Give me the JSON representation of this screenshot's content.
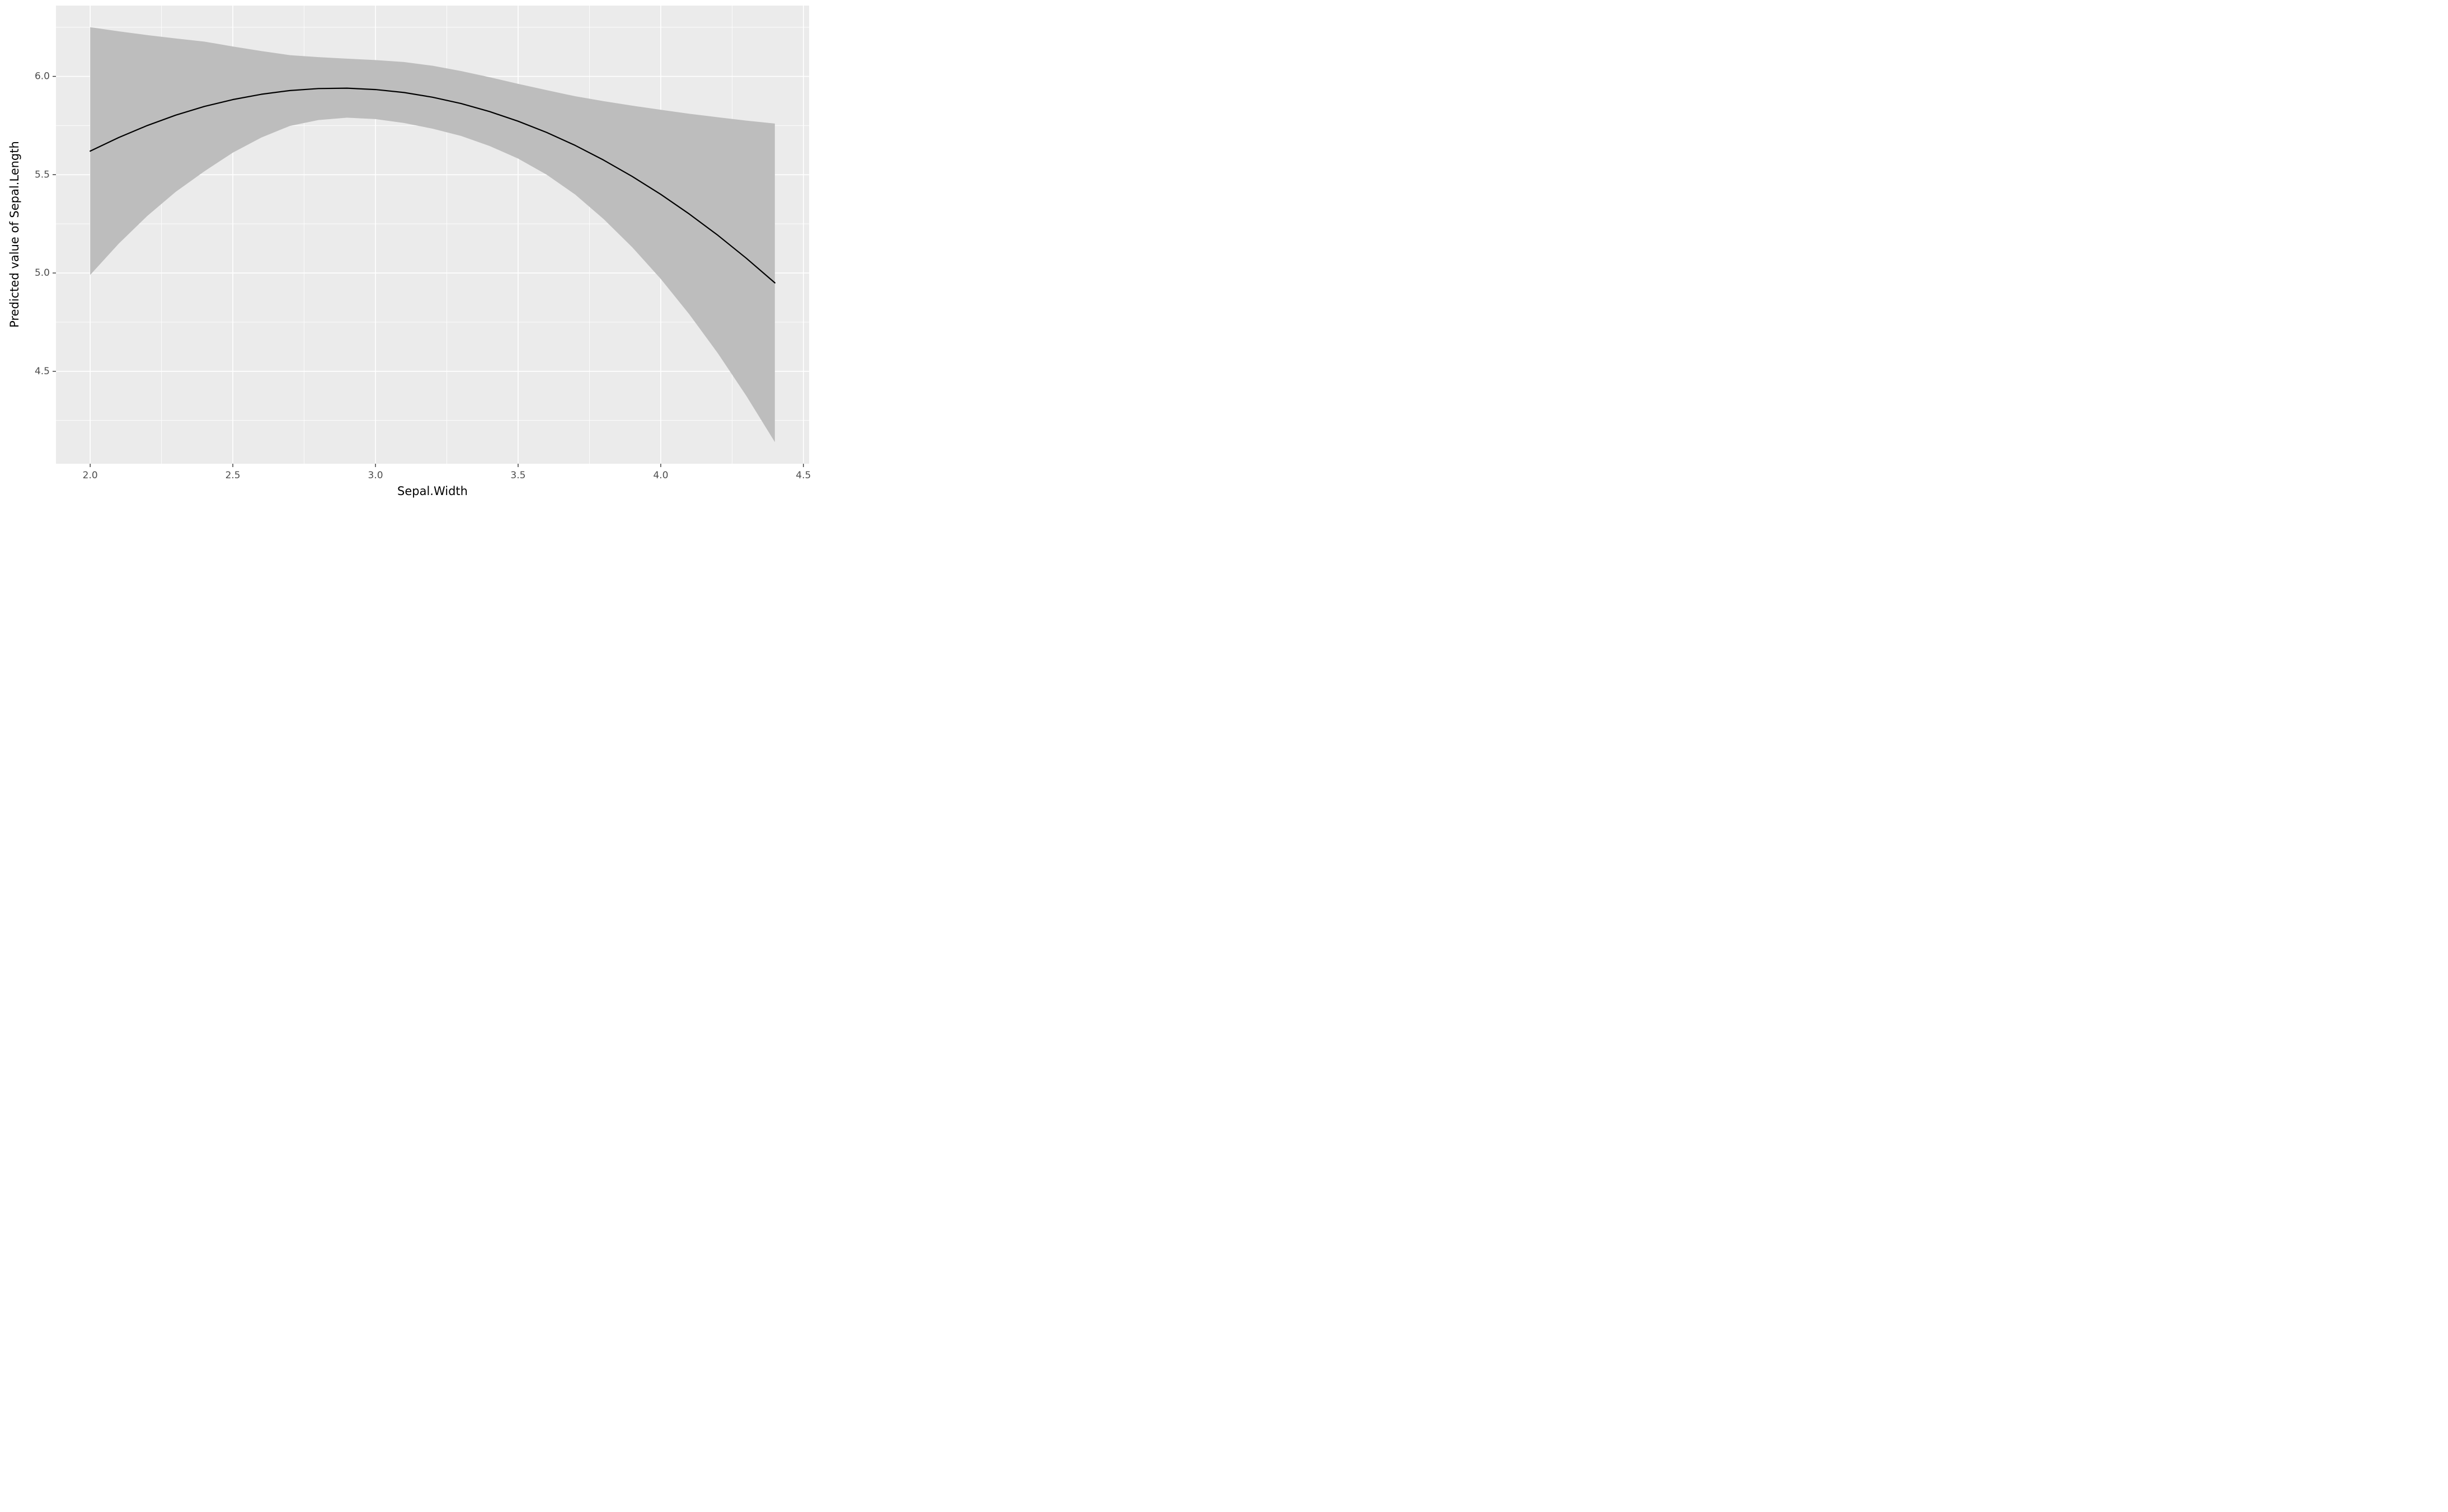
{
  "chart_data": {
    "type": "line",
    "title": "",
    "xlabel": "Sepal.Width",
    "ylabel": "Predicted value of Sepal.Length",
    "xlim": [
      1.88,
      4.52
    ],
    "ylim": [
      4.03,
      6.36
    ],
    "grid": true,
    "legend": "none",
    "x_ticks": {
      "values": [
        2.0,
        2.5,
        3.0,
        3.5,
        4.0,
        4.5
      ],
      "labels": [
        "2.0",
        "2.5",
        "3.0",
        "3.5",
        "4.0",
        "4.5"
      ]
    },
    "y_ticks": {
      "values": [
        4.5,
        5.0,
        5.5,
        6.0
      ],
      "labels": [
        "4.5",
        "5.0",
        "5.5",
        "6.0"
      ]
    },
    "x_minor": [
      2.25,
      2.75,
      3.25,
      3.75,
      4.25
    ],
    "y_minor": [
      4.25,
      4.75,
      5.25,
      5.75,
      6.25
    ],
    "x": [
      2.0,
      2.1,
      2.2,
      2.3,
      2.4,
      2.5,
      2.6,
      2.7,
      2.8,
      2.9,
      3.0,
      3.1,
      3.2,
      3.3,
      3.4,
      3.5,
      3.6,
      3.7,
      3.8,
      3.9,
      4.0,
      4.1,
      4.2,
      4.3,
      4.4
    ],
    "series": [
      {
        "name": "predicted",
        "values": [
          5.62,
          5.689,
          5.75,
          5.803,
          5.847,
          5.882,
          5.909,
          5.928,
          5.938,
          5.94,
          5.933,
          5.918,
          5.894,
          5.862,
          5.821,
          5.772,
          5.715,
          5.649,
          5.574,
          5.491,
          5.4,
          5.3,
          5.192,
          5.075,
          4.95
        ]
      },
      {
        "name": "conf_low",
        "values": [
          4.99,
          5.149,
          5.29,
          5.413,
          5.517,
          5.612,
          5.689,
          5.748,
          5.778,
          5.79,
          5.783,
          5.763,
          5.734,
          5.697,
          5.646,
          5.582,
          5.5,
          5.399,
          5.274,
          5.131,
          4.97,
          4.79,
          4.592,
          4.375,
          4.14
        ]
      },
      {
        "name": "conf_high",
        "values": [
          6.25,
          6.229,
          6.21,
          6.193,
          6.177,
          6.152,
          6.129,
          6.108,
          6.098,
          6.09,
          6.083,
          6.073,
          6.054,
          6.027,
          5.996,
          5.962,
          5.93,
          5.899,
          5.874,
          5.851,
          5.83,
          5.81,
          5.792,
          5.775,
          5.76
        ]
      }
    ],
    "colors": {
      "panel_bg": "#EBEBEB",
      "grid_major": "#FFFFFF",
      "grid_minor": "#FFFFFF",
      "ribbon": "#BDBDBD",
      "line": "#000000",
      "axis_text": "#4D4D4D",
      "axis_title": "#000000",
      "tick_mark": "#333333"
    }
  }
}
